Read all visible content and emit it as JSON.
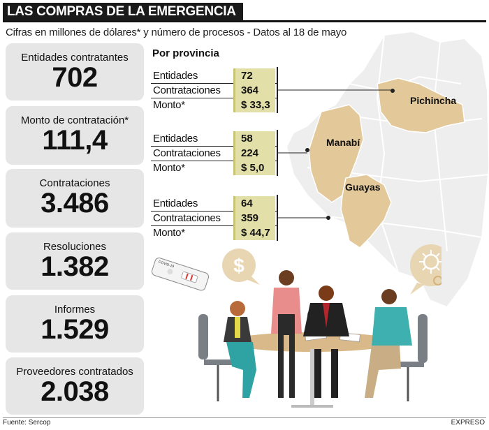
{
  "title": "LAS COMPRAS DE LA EMERGENCIA",
  "subtitle": "Cifras en millones de dólares* y número de procesos - Datos al 18 de mayo",
  "stats": [
    {
      "label": "Entidades contratantes",
      "value": "702"
    },
    {
      "label": "Monto de contratación*",
      "value": "111,4"
    },
    {
      "label": "Contrataciones",
      "value": "3.486"
    },
    {
      "label": "Resoluciones",
      "value": "1.382"
    },
    {
      "label": "Informes",
      "value": "1.529"
    },
    {
      "label": "Proveedores contratados",
      "value": "2.038"
    }
  ],
  "provinces_heading": "Por provincia",
  "provinces": [
    {
      "name": "Pichincha",
      "rows": [
        {
          "label": "Entidades",
          "value": "72"
        },
        {
          "label": "Contrataciones",
          "value": "364"
        },
        {
          "label": "Monto*",
          "value": "$ 33,3"
        }
      ]
    },
    {
      "name": "Manabí",
      "rows": [
        {
          "label": "Entidades",
          "value": "58"
        },
        {
          "label": "Contrataciones",
          "value": "224"
        },
        {
          "label": "Monto*",
          "value": "$ 5,0"
        }
      ]
    },
    {
      "name": "Guayas",
      "rows": [
        {
          "label": "Entidades",
          "value": "64"
        },
        {
          "label": "Contrataciones",
          "value": "359"
        },
        {
          "label": "Monto*",
          "value": "$ 44,7"
        }
      ]
    }
  ],
  "test_label": "COVID-19",
  "dollar_symbol": "$",
  "source": "Fuente: Sercop",
  "brand": "EXPRESO",
  "colors": {
    "province_fill": "#e3c89a",
    "value_fill": "#e3dfa8",
    "map_fill": "#eeeeee",
    "bubble": "#e8d6b2"
  }
}
